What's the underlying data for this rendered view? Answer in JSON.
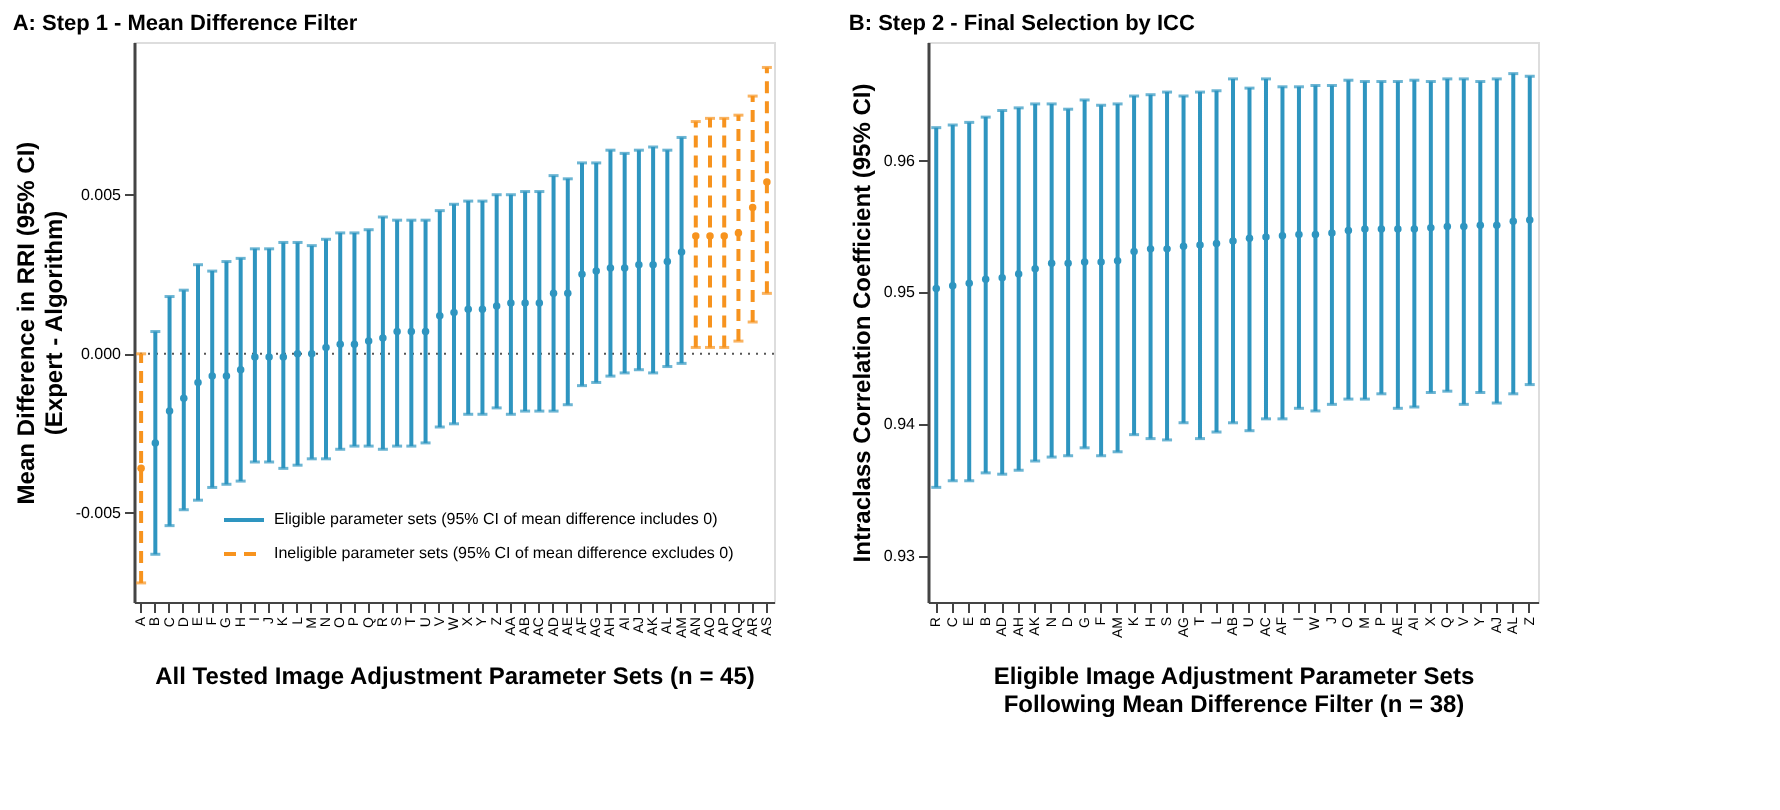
{
  "chart_data": [
    {
      "type": "scatter",
      "title": "A: Step 1 - Mean Difference Filter",
      "xlabel": "All Tested Image Adjustment Parameter Sets (n = 45)",
      "ylabel": "Mean Difference in RRI (95% CI)\n(Expert - Algorithm)",
      "categories": [
        "A",
        "B",
        "C",
        "D",
        "E",
        "F",
        "G",
        "H",
        "I",
        "J",
        "K",
        "L",
        "M",
        "N",
        "O",
        "P",
        "Q",
        "R",
        "S",
        "T",
        "U",
        "V",
        "W",
        "X",
        "Y",
        "Z",
        "AA",
        "AB",
        "AC",
        "AD",
        "AE",
        "AF",
        "AG",
        "AH",
        "AI",
        "AJ",
        "AK",
        "AL",
        "AM",
        "AN",
        "AO",
        "AP",
        "AQ",
        "AR",
        "AS"
      ],
      "series": [
        {
          "name": "Eligible parameter sets (95% CI of mean difference includes 0)",
          "color": "#2e95c0",
          "line_style": "solid",
          "values": [
            null,
            -0.0028,
            -0.0018,
            -0.0014,
            -0.0009,
            -0.0007,
            -0.0007,
            -0.0005,
            -0.0001,
            -0.0001,
            -0.0001,
            0.0,
            0.0,
            0.0002,
            0.0003,
            0.0003,
            0.0004,
            0.0005,
            0.0007,
            0.0007,
            0.0007,
            0.0012,
            0.0013,
            0.0014,
            0.0014,
            0.0015,
            0.0016,
            0.0016,
            0.0016,
            0.0019,
            0.0019,
            0.0025,
            0.0026,
            0.0027,
            0.0027,
            0.0028,
            0.0028,
            0.0029,
            0.0032,
            null,
            null,
            null,
            null,
            null,
            null
          ],
          "errors": [
            null,
            [
              -0.0063,
              0.0007
            ],
            [
              -0.0054,
              0.0018
            ],
            [
              -0.0049,
              0.002
            ],
            [
              -0.0046,
              0.0028
            ],
            [
              -0.0042,
              0.0026
            ],
            [
              -0.0041,
              0.0029
            ],
            [
              -0.004,
              0.003
            ],
            [
              -0.0034,
              0.0033
            ],
            [
              -0.0034,
              0.0033
            ],
            [
              -0.0036,
              0.0035
            ],
            [
              -0.0035,
              0.0035
            ],
            [
              -0.0033,
              0.0034
            ],
            [
              -0.0033,
              0.0036
            ],
            [
              -0.003,
              0.0038
            ],
            [
              -0.0029,
              0.0038
            ],
            [
              -0.0029,
              0.0039
            ],
            [
              -0.003,
              0.0043
            ],
            [
              -0.0029,
              0.0042
            ],
            [
              -0.0029,
              0.0042
            ],
            [
              -0.0028,
              0.0042
            ],
            [
              -0.0023,
              0.0045
            ],
            [
              -0.0022,
              0.0047
            ],
            [
              -0.0019,
              0.0048
            ],
            [
              -0.0019,
              0.0048
            ],
            [
              -0.0017,
              0.005
            ],
            [
              -0.0019,
              0.005
            ],
            [
              -0.0018,
              0.0051
            ],
            [
              -0.0018,
              0.0051
            ],
            [
              -0.0018,
              0.0056
            ],
            [
              -0.0016,
              0.0055
            ],
            [
              -0.001,
              0.006
            ],
            [
              -0.0009,
              0.006
            ],
            [
              -0.0007,
              0.0064
            ],
            [
              -0.0006,
              0.0063
            ],
            [
              -0.0005,
              0.0064
            ],
            [
              -0.0006,
              0.0065
            ],
            [
              -0.0004,
              0.0064
            ],
            [
              -0.0003,
              0.0068
            ],
            null,
            null,
            null,
            null,
            null,
            null
          ]
        },
        {
          "name": "Ineligible parameter sets (95% CI of mean difference excludes 0)",
          "color": "#f7931e",
          "line_style": "dashed",
          "values": [
            -0.0036,
            null,
            null,
            null,
            null,
            null,
            null,
            null,
            null,
            null,
            null,
            null,
            null,
            null,
            null,
            null,
            null,
            null,
            null,
            null,
            null,
            null,
            null,
            null,
            null,
            null,
            null,
            null,
            null,
            null,
            null,
            null,
            null,
            null,
            null,
            null,
            null,
            null,
            null,
            0.0037,
            0.0037,
            0.0037,
            0.0038,
            0.0046,
            0.0054
          ],
          "errors": [
            [
              -0.0072,
              0.0
            ],
            null,
            null,
            null,
            null,
            null,
            null,
            null,
            null,
            null,
            null,
            null,
            null,
            null,
            null,
            null,
            null,
            null,
            null,
            null,
            null,
            null,
            null,
            null,
            null,
            null,
            null,
            null,
            null,
            null,
            null,
            null,
            null,
            null,
            null,
            null,
            null,
            null,
            null,
            [
              0.0002,
              0.0073
            ],
            [
              0.0002,
              0.0074
            ],
            [
              0.0002,
              0.0074
            ],
            [
              0.0004,
              0.0075
            ],
            [
              0.001,
              0.0081
            ],
            [
              0.0019,
              0.009
            ]
          ]
        }
      ],
      "ylim": [
        -0.0078,
        0.0098
      ],
      "yticks": [
        {
          "value": -0.005,
          "label": "-0.005"
        },
        {
          "value": 0,
          "label": "0.000"
        },
        {
          "value": 0.005,
          "label": "0.005"
        }
      ],
      "ref_lines": [
        {
          "axis": "y",
          "value": 0,
          "color": "#555555",
          "line_style": "dotted"
        }
      ],
      "marker": "circle",
      "grid": false,
      "legend": "bottom right"
    },
    {
      "type": "scatter",
      "title": "B: Step 2 - Final Selection by ICC",
      "xlabel": "Eligible Image Adjustment Parameter Sets\nFollowing Mean Difference Filter (n = 38)",
      "ylabel": "Intraclass Correlation Coefficient (95% CI)",
      "categories": [
        "R",
        "C",
        "E",
        "B",
        "AD",
        "AH",
        "AK",
        "N",
        "D",
        "G",
        "F",
        "AM",
        "K",
        "H",
        "S",
        "AG",
        "T",
        "L",
        "AB",
        "U",
        "AC",
        "AF",
        "I",
        "W",
        "J",
        "O",
        "M",
        "P",
        "AE",
        "AI",
        "X",
        "Q",
        "V",
        "Y",
        "AJ",
        "AL",
        "Z"
      ],
      "series": [
        {
          "color": "#2e95c0",
          "line_style": "solid",
          "values": [
            0.9503,
            0.9505,
            0.9507,
            0.951,
            0.9511,
            0.9514,
            0.9518,
            0.9522,
            0.9522,
            0.9523,
            0.9523,
            0.9524,
            0.9531,
            0.9533,
            0.9533,
            0.9535,
            0.9536,
            0.9537,
            0.9539,
            0.9541,
            0.9542,
            0.9543,
            0.9544,
            0.9544,
            0.9545,
            0.9547,
            0.9548,
            0.9548,
            0.9548,
            0.9548,
            0.9549,
            0.955,
            0.955,
            0.9551,
            0.9551,
            0.9554,
            0.9555
          ],
          "errors": [
            [
              0.9352,
              0.9625
            ],
            [
              0.9357,
              0.9627
            ],
            [
              0.9357,
              0.9629
            ],
            [
              0.9363,
              0.9633
            ],
            [
              0.9362,
              0.9638
            ],
            [
              0.9365,
              0.964
            ],
            [
              0.9372,
              0.9643
            ],
            [
              0.9375,
              0.9643
            ],
            [
              0.9376,
              0.9639
            ],
            [
              0.9382,
              0.9646
            ],
            [
              0.9376,
              0.9642
            ],
            [
              0.9379,
              0.9643
            ],
            [
              0.9392,
              0.9649
            ],
            [
              0.9389,
              0.965
            ],
            [
              0.9388,
              0.9652
            ],
            [
              0.9401,
              0.9649
            ],
            [
              0.9389,
              0.9652
            ],
            [
              0.9394,
              0.9653
            ],
            [
              0.9401,
              0.9662
            ],
            [
              0.9395,
              0.9655
            ],
            [
              0.9404,
              0.9662
            ],
            [
              0.9404,
              0.9656
            ],
            [
              0.9412,
              0.9656
            ],
            [
              0.941,
              0.9657
            ],
            [
              0.9415,
              0.9657
            ],
            [
              0.9419,
              0.9661
            ],
            [
              0.9419,
              0.966
            ],
            [
              0.9423,
              0.966
            ],
            [
              0.9412,
              0.966
            ],
            [
              0.9413,
              0.9661
            ],
            [
              0.9424,
              0.966
            ],
            [
              0.9425,
              0.9662
            ],
            [
              0.9415,
              0.9662
            ],
            [
              0.9424,
              0.966
            ],
            [
              0.9416,
              0.9662
            ],
            [
              0.9423,
              0.9666
            ],
            [
              0.943,
              0.9664
            ]
          ]
        }
      ],
      "ylim": [
        0.9265,
        0.969
      ],
      "yticks": [
        0.93,
        0.94,
        0.95,
        0.96
      ],
      "marker": "circle",
      "grid": false,
      "legend": false
    }
  ]
}
